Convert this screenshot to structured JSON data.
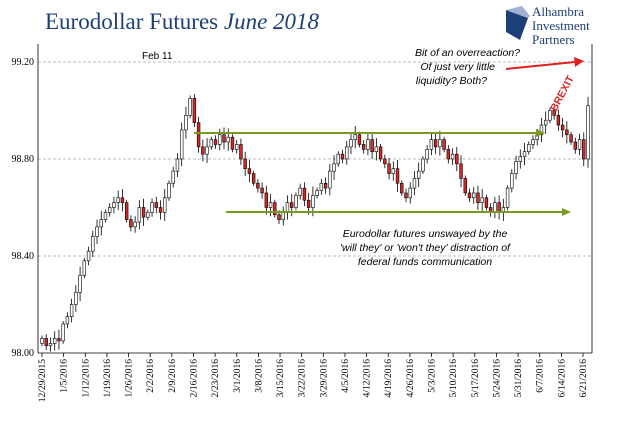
{
  "chart_data": {
    "type": "candlestick",
    "title": "Eurodollar Futures",
    "title_italic": "June 2018",
    "brand": [
      "Alhambra",
      "Investment",
      "Partners"
    ],
    "y_ticks": [
      "99.20",
      "98.80",
      "98.40",
      "98.00"
    ],
    "ylim": [
      98.0,
      99.2
    ],
    "grid": true,
    "x_ticks": [
      "12/29/2015",
      "1/5/2016",
      "1/12/2016",
      "1/19/2016",
      "1/26/2016",
      "2/2/2016",
      "2/9/2016",
      "2/16/2016",
      "2/23/2016",
      "3/1/2016",
      "3/8/2016",
      "3/15/2016",
      "3/22/2016",
      "3/29/2016",
      "4/5/2016",
      "4/12/2016",
      "4/19/2016",
      "4/26/2016",
      "5/3/2016",
      "5/10/2016",
      "5/17/2016",
      "5/24/2016",
      "5/31/2016",
      "6/7/2016",
      "6/14/2016",
      "6/21/2016"
    ],
    "annotations": {
      "feb": "Feb 11",
      "overreaction": [
        "Bit of an overreaction?",
        "Of just very little",
        "liquidity? Both?"
      ],
      "unswayed": [
        "Eurodollar futures unswayed by the",
        "'will they' or 'won't they' distraction of",
        "federal funds communication"
      ],
      "brexit": "BREXIT"
    },
    "colors": {
      "up": "#ffffff",
      "down": "#d62a2a",
      "outline": "#000000",
      "arrow_green": "#7a9a1e",
      "arrow_red": "#e02020",
      "title": "#1c3f7a"
    },
    "closes": [
      98.06,
      98.03,
      98.04,
      98.06,
      98.05,
      98.12,
      98.15,
      98.2,
      98.25,
      98.32,
      98.38,
      98.42,
      98.48,
      98.52,
      98.55,
      98.58,
      98.6,
      98.62,
      98.64,
      98.62,
      98.55,
      98.52,
      98.54,
      98.6,
      98.56,
      98.58,
      98.62,
      98.6,
      98.58,
      98.64,
      98.7,
      98.75,
      98.8,
      98.92,
      98.98,
      99.05,
      98.95,
      98.85,
      98.82,
      98.85,
      98.88,
      98.86,
      98.9,
      98.87,
      98.89,
      98.84,
      98.86,
      98.8,
      98.76,
      98.74,
      98.7,
      98.68,
      98.66,
      98.6,
      98.62,
      98.57,
      98.55,
      98.58,
      98.62,
      98.6,
      98.65,
      98.68,
      98.63,
      98.6,
      98.65,
      98.67,
      98.7,
      98.68,
      98.75,
      98.78,
      98.82,
      98.8,
      98.85,
      98.88,
      98.9,
      98.86,
      98.84,
      98.88,
      98.83,
      98.85,
      98.8,
      98.78,
      98.74,
      98.76,
      98.7,
      98.66,
      98.64,
      98.68,
      98.72,
      98.75,
      98.8,
      98.84,
      98.88,
      98.85,
      98.88,
      98.84,
      98.8,
      98.82,
      98.78,
      98.72,
      98.66,
      98.64,
      98.66,
      98.62,
      98.64,
      98.6,
      98.58,
      98.62,
      98.58,
      98.6,
      98.68,
      98.74,
      98.79,
      98.81,
      98.83,
      98.86,
      98.88,
      98.9,
      98.94,
      98.96,
      99.0,
      98.98,
      98.94,
      98.92,
      98.9,
      98.87,
      98.84,
      98.88,
      98.8,
      99.02
    ]
  }
}
